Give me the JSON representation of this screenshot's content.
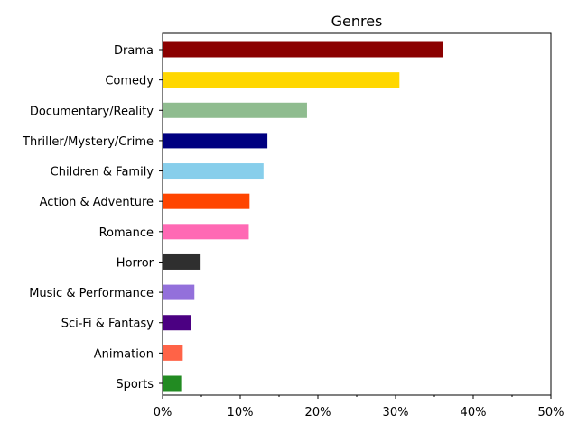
{
  "chart_data": {
    "type": "bar",
    "orientation": "horizontal",
    "title": "Genres",
    "xlabel": "",
    "ylabel": "",
    "xlim": [
      0,
      50
    ],
    "x_ticks": [
      0,
      10,
      20,
      30,
      40,
      50
    ],
    "x_tick_labels": [
      "0%",
      "10%",
      "20%",
      "30%",
      "40%",
      "50%"
    ],
    "grid": false,
    "legend": "none",
    "categories": [
      "Drama",
      "Comedy",
      "Documentary/Reality",
      "Thriller/Mystery/Crime",
      "Children & Family",
      "Action & Adventure",
      "Romance",
      "Horror",
      "Music & Performance",
      "Sci-Fi & Fantasy",
      "Animation",
      "Sports"
    ],
    "values": [
      36.1,
      30.5,
      18.6,
      13.5,
      13.0,
      11.2,
      11.1,
      4.9,
      4.1,
      3.7,
      2.6,
      2.4
    ],
    "colors": [
      "#8b0000",
      "#ffd700",
      "#8fbc8f",
      "#000080",
      "#87ceeb",
      "#ff4500",
      "#ff69b4",
      "#2f2f2f",
      "#9370db",
      "#4b0082",
      "#ff6347",
      "#228b22"
    ]
  }
}
